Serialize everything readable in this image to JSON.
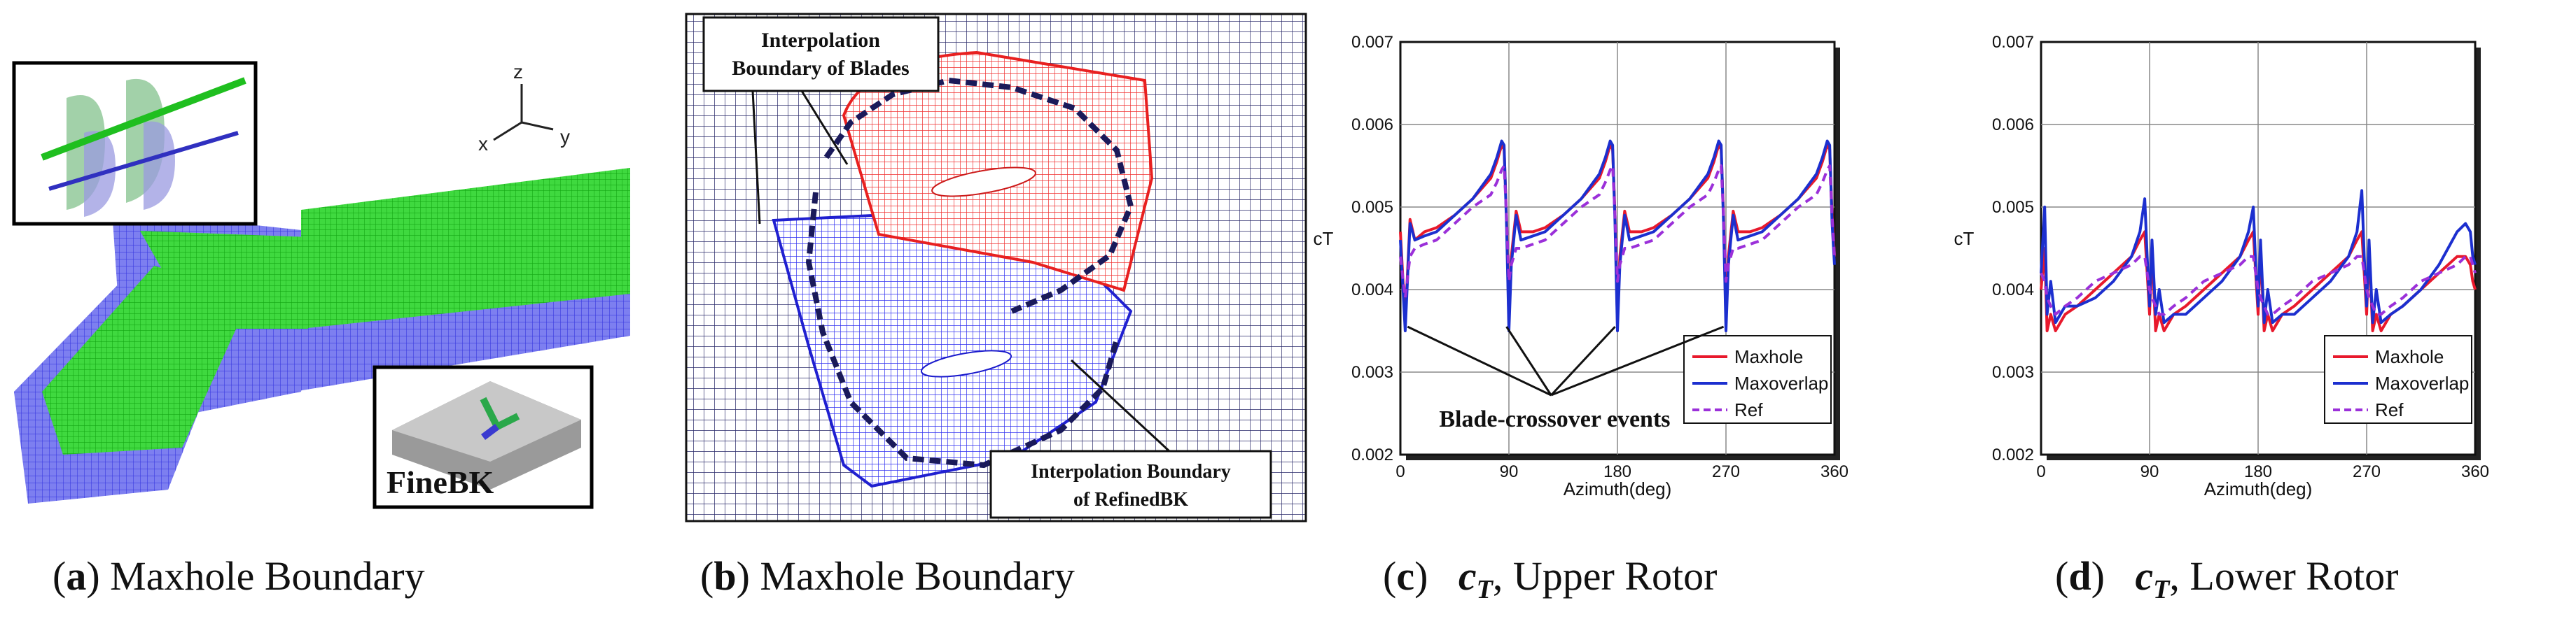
{
  "panel_a": {
    "axis_z": "z",
    "axis_x": "x",
    "axis_y": "y",
    "inset_label": "FineBK",
    "caption_letter": "a",
    "caption_text": "Maxhole Boundary"
  },
  "panel_b": {
    "callout_blades_line1": "Interpolation",
    "callout_blades_line2": "Boundary of Blades",
    "callout_refined_line1": "Interpolation Boundary",
    "callout_refined_line2": "of RefinedBK",
    "caption_letter": "b",
    "caption_text": "Maxhole Boundary"
  },
  "panel_c": {
    "caption_letter": "c",
    "caption_symbol": "c",
    "caption_sub": "T",
    "caption_text": "Upper Rotor",
    "annotation": "Blade-crossover events"
  },
  "panel_d": {
    "caption_letter": "d",
    "caption_symbol": "c",
    "caption_sub": "T",
    "caption_text": "Lower Rotor"
  },
  "chart_data": [
    {
      "type": "line",
      "title": "",
      "xlabel": "Azimuth(deg)",
      "ylabel": "cT",
      "xlim": [
        0,
        360
      ],
      "ylim": [
        0.002,
        0.007
      ],
      "xticks": [
        "0",
        "90",
        "180",
        "270",
        "360"
      ],
      "yticks": [
        "0.002",
        "0.003",
        "0.004",
        "0.005",
        "0.006",
        "0.007"
      ],
      "grid": true,
      "legend_position": "bottom-right",
      "x": [
        0,
        4,
        8,
        12,
        20,
        30,
        45,
        60,
        75,
        80,
        84,
        86,
        88,
        90,
        92,
        96,
        100,
        110,
        120,
        135,
        150,
        165,
        170,
        174,
        176,
        178,
        180,
        182,
        186,
        190,
        200,
        210,
        225,
        240,
        255,
        260,
        264,
        266,
        268,
        270,
        272,
        276,
        280,
        290,
        300,
        315,
        330,
        345,
        350,
        354,
        356,
        358,
        360
      ],
      "series": [
        {
          "name": "Maxhole",
          "color": "#e8192c",
          "values": [
            0.0047,
            0.0036,
            0.00485,
            0.0046,
            0.0047,
            0.00475,
            0.0049,
            0.0051,
            0.00535,
            0.00555,
            0.00575,
            0.0057,
            0.0049,
            0.0036,
            0.0044,
            0.00495,
            0.0047,
            0.0047,
            0.00475,
            0.0049,
            0.0051,
            0.00535,
            0.00555,
            0.00575,
            0.0057,
            0.0049,
            0.0036,
            0.0044,
            0.00495,
            0.0047,
            0.0047,
            0.00475,
            0.0049,
            0.0051,
            0.00535,
            0.00555,
            0.00575,
            0.0057,
            0.0049,
            0.0036,
            0.0044,
            0.00495,
            0.0047,
            0.0047,
            0.00475,
            0.0049,
            0.0051,
            0.00535,
            0.00555,
            0.00575,
            0.0057,
            0.0049,
            0.0044
          ]
        },
        {
          "name": "Maxoverlap",
          "color": "#1c2fcf",
          "values": [
            0.0046,
            0.0035,
            0.0048,
            0.0046,
            0.00465,
            0.0047,
            0.0049,
            0.0051,
            0.0054,
            0.0056,
            0.0058,
            0.00575,
            0.0048,
            0.0035,
            0.0043,
            0.0049,
            0.0046,
            0.00465,
            0.0047,
            0.0049,
            0.0051,
            0.0054,
            0.0056,
            0.0058,
            0.00575,
            0.0048,
            0.0035,
            0.0043,
            0.0049,
            0.0046,
            0.00465,
            0.0047,
            0.0049,
            0.0051,
            0.0054,
            0.0056,
            0.0058,
            0.00575,
            0.0048,
            0.0035,
            0.0043,
            0.0049,
            0.0046,
            0.00465,
            0.0047,
            0.0049,
            0.0051,
            0.0054,
            0.0056,
            0.0058,
            0.00575,
            0.0048,
            0.0043
          ]
        },
        {
          "name": "Ref",
          "color": "#9b30d9",
          "dashed": true,
          "values": [
            0.0044,
            0.0039,
            0.0044,
            0.0045,
            0.00455,
            0.0046,
            0.0048,
            0.005,
            0.00515,
            0.0053,
            0.00545,
            0.0055,
            0.0049,
            0.0041,
            0.0043,
            0.0045,
            0.0045,
            0.00455,
            0.0046,
            0.0048,
            0.005,
            0.00515,
            0.0053,
            0.00545,
            0.0055,
            0.0049,
            0.0041,
            0.0043,
            0.0045,
            0.0045,
            0.00455,
            0.0046,
            0.0048,
            0.005,
            0.00515,
            0.0053,
            0.00545,
            0.0055,
            0.0049,
            0.0041,
            0.0043,
            0.0045,
            0.0045,
            0.00455,
            0.0046,
            0.0048,
            0.005,
            0.00515,
            0.0053,
            0.00545,
            0.0055,
            0.0049,
            0.0044
          ]
        }
      ]
    },
    {
      "type": "line",
      "title": "",
      "xlabel": "Azimuth(deg)",
      "ylabel": "cT",
      "xlim": [
        0,
        360
      ],
      "ylim": [
        0.002,
        0.007
      ],
      "xticks": [
        "0",
        "90",
        "180",
        "270",
        "360"
      ],
      "yticks": [
        "0.002",
        "0.003",
        "0.004",
        "0.005",
        "0.006",
        "0.007"
      ],
      "grid": true,
      "legend_position": "bottom-right",
      "x": [
        0,
        3,
        5,
        8,
        12,
        20,
        30,
        45,
        60,
        75,
        82,
        86,
        88,
        90,
        92,
        95,
        98,
        102,
        110,
        120,
        135,
        150,
        165,
        172,
        176,
        178,
        180,
        182,
        185,
        188,
        192,
        200,
        210,
        225,
        240,
        255,
        262,
        266,
        268,
        270,
        272,
        275,
        278,
        282,
        290,
        300,
        315,
        330,
        345,
        352,
        356,
        358,
        360
      ],
      "series": [
        {
          "name": "Maxhole",
          "color": "#e8192c",
          "values": [
            0.004,
            0.0045,
            0.0035,
            0.0037,
            0.0035,
            0.0037,
            0.0038,
            0.004,
            0.0042,
            0.0044,
            0.0046,
            0.0047,
            0.0042,
            0.0037,
            0.0045,
            0.0035,
            0.0037,
            0.0035,
            0.0037,
            0.0038,
            0.004,
            0.0042,
            0.0044,
            0.0046,
            0.0047,
            0.0042,
            0.0037,
            0.0045,
            0.0035,
            0.0037,
            0.0035,
            0.0037,
            0.0038,
            0.004,
            0.0042,
            0.0044,
            0.0046,
            0.0047,
            0.0042,
            0.0037,
            0.0045,
            0.0035,
            0.0037,
            0.0035,
            0.0037,
            0.0038,
            0.004,
            0.0042,
            0.0044,
            0.0044,
            0.0043,
            0.0041,
            0.004
          ]
        },
        {
          "name": "Maxoverlap",
          "color": "#1c2fcf",
          "values": [
            0.0042,
            0.005,
            0.0037,
            0.0041,
            0.0036,
            0.0038,
            0.0038,
            0.0039,
            0.0041,
            0.0044,
            0.0047,
            0.0051,
            0.0044,
            0.0038,
            0.0046,
            0.0037,
            0.004,
            0.0036,
            0.0037,
            0.0037,
            0.0039,
            0.0041,
            0.0044,
            0.0047,
            0.005,
            0.0043,
            0.0038,
            0.0046,
            0.0036,
            0.004,
            0.0036,
            0.0037,
            0.0037,
            0.0039,
            0.0041,
            0.0044,
            0.0047,
            0.0052,
            0.0044,
            0.0038,
            0.0046,
            0.0036,
            0.004,
            0.0036,
            0.0037,
            0.0038,
            0.004,
            0.0043,
            0.0047,
            0.0048,
            0.0047,
            0.0044,
            0.0043
          ]
        },
        {
          "name": "Ref",
          "color": "#9b30d9",
          "dashed": true,
          "values": [
            0.0042,
            0.0041,
            0.0039,
            0.0038,
            0.0037,
            0.0038,
            0.0039,
            0.0041,
            0.0042,
            0.0043,
            0.0044,
            0.0044,
            0.0042,
            0.004,
            0.0039,
            0.0038,
            0.0037,
            0.0037,
            0.0038,
            0.0039,
            0.0041,
            0.0042,
            0.0043,
            0.0044,
            0.0044,
            0.0042,
            0.004,
            0.0039,
            0.0038,
            0.0037,
            0.0037,
            0.0038,
            0.0039,
            0.0041,
            0.0042,
            0.0043,
            0.0044,
            0.0044,
            0.0042,
            0.004,
            0.0039,
            0.0038,
            0.0037,
            0.0037,
            0.0038,
            0.0039,
            0.0041,
            0.0042,
            0.0043,
            0.0044,
            0.0044,
            0.0043,
            0.0042
          ]
        }
      ]
    }
  ]
}
